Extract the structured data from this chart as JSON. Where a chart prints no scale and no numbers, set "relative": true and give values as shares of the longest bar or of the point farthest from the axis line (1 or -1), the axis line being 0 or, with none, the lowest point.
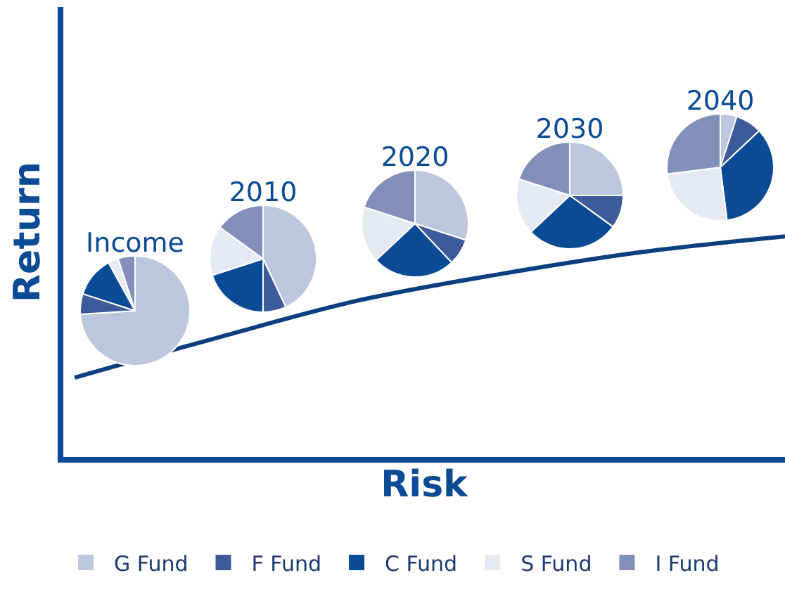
{
  "chart_data": [
    {
      "type": "line",
      "xlabel": "Risk",
      "ylabel": "Return",
      "relative": true,
      "categories": [
        null,
        null,
        null,
        null,
        null,
        null
      ],
      "series": [
        {
          "color": "#0b3f80",
          "values": [
            0.36,
            0.54,
            0.71,
            0.83,
            0.93,
            1.0
          ]
        }
      ]
    },
    {
      "type": "pie",
      "title": "Income",
      "categories": [
        "G Fund",
        "F Fund",
        "C Fund",
        "S Fund",
        "I Fund"
      ],
      "values": [
        74,
        6,
        12,
        3,
        5
      ],
      "colors": [
        "#bcc6dc",
        "#3d5a99",
        "#0b4a94",
        "#e6e9f2",
        "#8090b8"
      ],
      "legend": "bottom"
    },
    {
      "type": "pie",
      "title": "2010",
      "values": [
        43,
        7,
        20,
        15,
        15
      ],
      "colors": [
        "#bcc6dc",
        "#3d5a99",
        "#0b4a94",
        "#e6e9f2",
        "#8090b8"
      ]
    },
    {
      "type": "pie",
      "title": "2020",
      "values": [
        30,
        8,
        25,
        17,
        20
      ],
      "colors": [
        "#bcc6dc",
        "#3d5a99",
        "#0b4a94",
        "#e6e9f2",
        "#8090b8"
      ]
    },
    {
      "type": "pie",
      "title": "2030",
      "values": [
        25,
        10,
        28,
        17,
        20
      ],
      "colors": [
        "#bcc6dc",
        "#3d5a99",
        "#0b4a94",
        "#e6e9f2",
        "#8090b8"
      ]
    },
    {
      "type": "pie",
      "title": "2040",
      "values": [
        5,
        8,
        35,
        25,
        27
      ],
      "colors": [
        "#bcc6dc",
        "#3d5a99",
        "#0b4a94",
        "#e6e9f2",
        "#8090b8"
      ]
    }
  ]
}
